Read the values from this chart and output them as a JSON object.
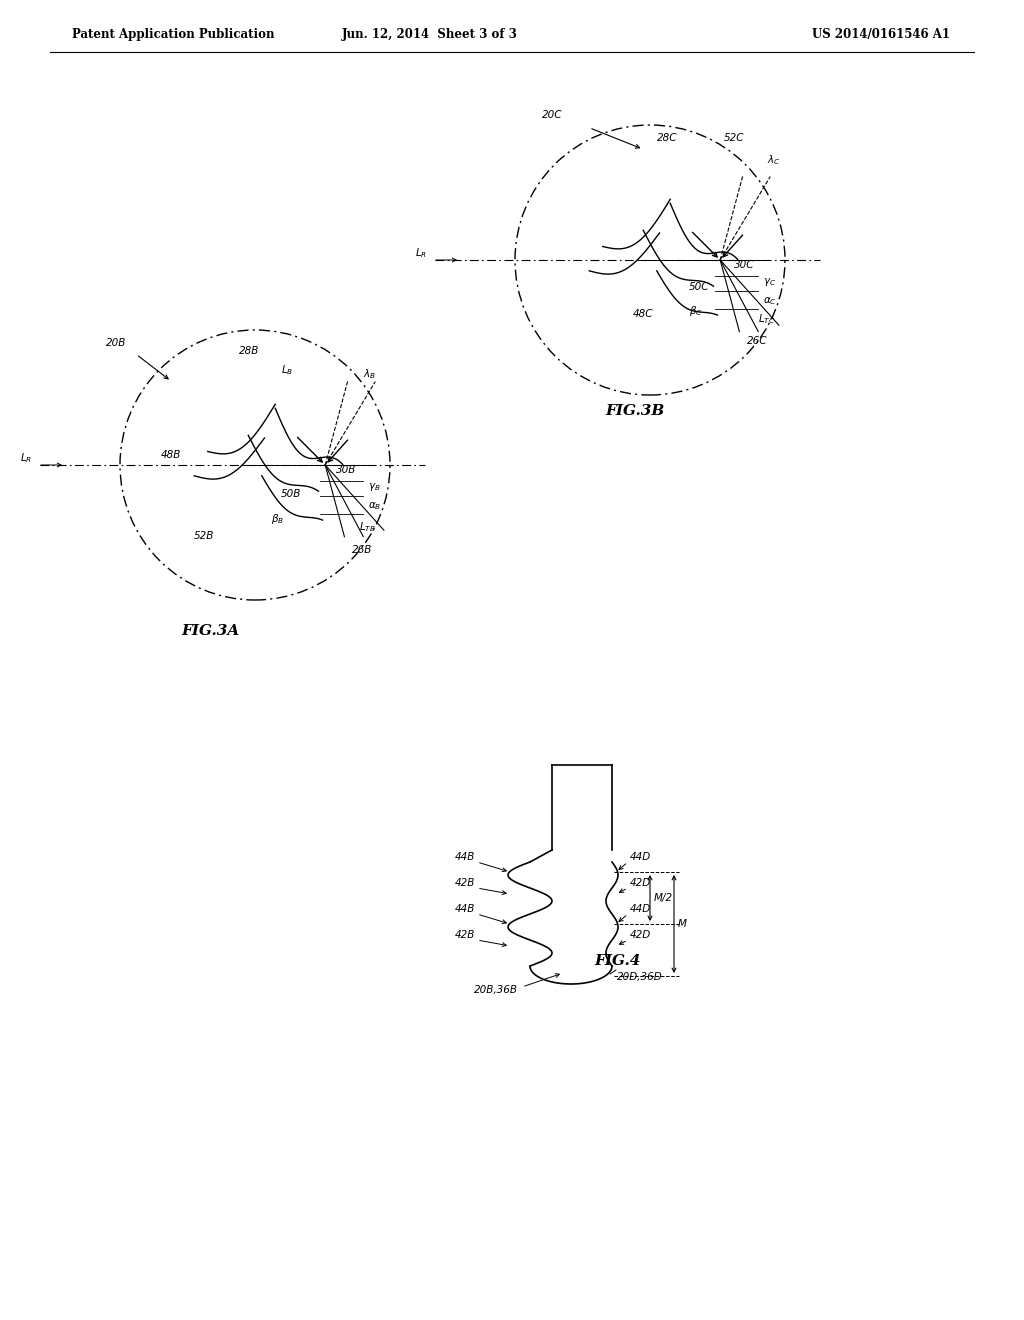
{
  "header_left": "Patent Application Publication",
  "header_center": "Jun. 12, 2014  Sheet 3 of 3",
  "header_right": "US 2014/0161546 A1",
  "fig3a_label": "FIG.3A",
  "fig3b_label": "FIG.3B",
  "fig4_label": "FIG.4",
  "bg_color": "#ffffff",
  "line_color": "#000000"
}
